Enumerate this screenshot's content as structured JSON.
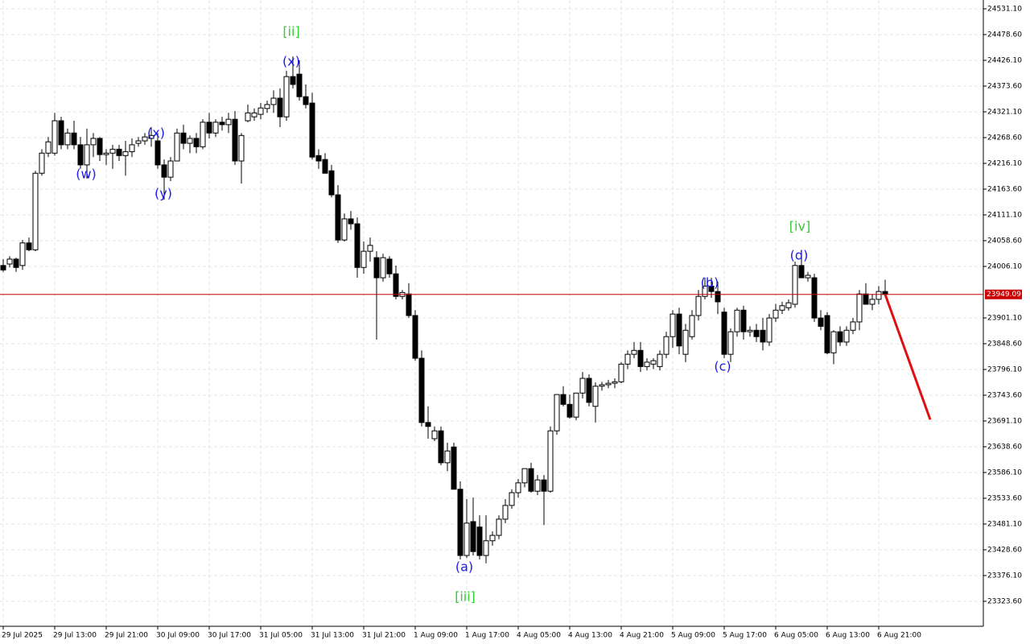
{
  "chart_data": {
    "type": "candlestick",
    "ylim": [
      23272.7,
      24549.1
    ],
    "yticks": [
      {
        "value": 24531.1,
        "label": "24531.10"
      },
      {
        "value": 24478.6,
        "label": "24478.60"
      },
      {
        "value": 24426.1,
        "label": "24426.10"
      },
      {
        "value": 24373.6,
        "label": "24373.60"
      },
      {
        "value": 24321.1,
        "label": "24321.10"
      },
      {
        "value": 24268.6,
        "label": "24268.60"
      },
      {
        "value": 24216.1,
        "label": "24216.10"
      },
      {
        "value": 24163.6,
        "label": "24163.60"
      },
      {
        "value": 24111.1,
        "label": "24111.10"
      },
      {
        "value": 24058.6,
        "label": "24058.60"
      },
      {
        "value": 24006.1,
        "label": "24006.10"
      },
      {
        "value": 23901.1,
        "label": "23901.10"
      },
      {
        "value": 23848.6,
        "label": "23848.60"
      },
      {
        "value": 23796.1,
        "label": "23796.10"
      },
      {
        "value": 23743.6,
        "label": "23743.60"
      },
      {
        "value": 23691.1,
        "label": "23691.10"
      },
      {
        "value": 23638.6,
        "label": "23638.60"
      },
      {
        "value": 23586.1,
        "label": "23586.10"
      },
      {
        "value": 23533.6,
        "label": "23533.60"
      },
      {
        "value": 23481.1,
        "label": "23481.10"
      },
      {
        "value": 23428.6,
        "label": "23428.60"
      },
      {
        "value": 23376.1,
        "label": "23376.10"
      },
      {
        "value": 23323.6,
        "label": "23323.60"
      }
    ],
    "grid": true,
    "up_color": "#ffffff",
    "down_color": "#000000",
    "categories": [
      "29 Jul 2025",
      null,
      null,
      null,
      null,
      null,
      null,
      null,
      "29 Jul 13:00",
      null,
      null,
      null,
      null,
      null,
      null,
      null,
      "29 Jul 21:00",
      null,
      null,
      null,
      null,
      null,
      null,
      null,
      "30 Jul 09:00",
      null,
      null,
      null,
      null,
      null,
      null,
      null,
      "30 Jul 17:00",
      null,
      null,
      null,
      null,
      null,
      null,
      null,
      "31 Jul 05:00",
      null,
      null,
      null,
      null,
      null,
      null,
      null,
      "31 Jul 13:00",
      null,
      null,
      null,
      null,
      null,
      null,
      null,
      "31 Jul 21:00",
      null,
      null,
      null,
      null,
      null,
      null,
      null,
      "1 Aug 09:00",
      null,
      null,
      null,
      null,
      null,
      null,
      null,
      "1 Aug 17:00",
      null,
      null,
      null,
      null,
      null,
      null,
      null,
      "4 Aug 05:00",
      null,
      null,
      null,
      null,
      null,
      null,
      null,
      "4 Aug 13:00",
      null,
      null,
      null,
      null,
      null,
      null,
      null,
      "4 Aug 21:00",
      null,
      null,
      null,
      null,
      null,
      null,
      null,
      "5 Aug 09:00",
      null,
      null,
      null,
      null,
      null,
      null,
      null,
      "5 Aug 17:00",
      null,
      null,
      null,
      null,
      null,
      null,
      null,
      "6 Aug 05:00",
      null,
      null,
      null,
      null,
      null,
      null,
      null,
      "6 Aug 13:00",
      null,
      null,
      null,
      null,
      null,
      null,
      null,
      "6 Aug 21:00",
      null
    ],
    "ohlc": [
      [
        24008,
        24021,
        23995,
        23999
      ],
      [
        24011,
        24027,
        24004,
        24021
      ],
      [
        24021,
        24024,
        23995,
        24004
      ],
      [
        24008,
        24060,
        23999,
        24054
      ],
      [
        24054,
        24065,
        24037,
        24040
      ],
      [
        24040,
        24201,
        24037,
        24196
      ],
      [
        24196,
        24245,
        24191,
        24237
      ],
      [
        24237,
        24270,
        24229,
        24260
      ],
      [
        24237,
        24319,
        24232,
        24303
      ],
      [
        24303,
        24311,
        24245,
        24254
      ],
      [
        24254,
        24287,
        24245,
        24278
      ],
      [
        24278,
        24303,
        24245,
        24254
      ],
      [
        24254,
        24270,
        24205,
        24213
      ],
      [
        24213,
        24287,
        24185,
        24254
      ],
      [
        24254,
        24278,
        24229,
        24267
      ],
      [
        24267,
        24270,
        24221,
        24234
      ],
      [
        24234,
        24245,
        24213,
        24237
      ],
      [
        24237,
        24254,
        24205,
        24245
      ],
      [
        24245,
        24254,
        24221,
        24232
      ],
      [
        24232,
        24262,
        24191,
        24240
      ],
      [
        24240,
        24267,
        24229,
        24254
      ],
      [
        24257,
        24270,
        24250,
        24262
      ],
      [
        24262,
        24278,
        24254,
        24270
      ],
      [
        24267,
        24290,
        24250,
        24273
      ],
      [
        24262,
        24278,
        24205,
        24213
      ],
      [
        24213,
        24224,
        24142,
        24188
      ],
      [
        24188,
        24229,
        24180,
        24221
      ],
      [
        24221,
        24287,
        24221,
        24278
      ],
      [
        24278,
        24295,
        24245,
        24257
      ],
      [
        24257,
        24273,
        24237,
        24267
      ],
      [
        24267,
        24278,
        24237,
        24250
      ],
      [
        24250,
        24306,
        24245,
        24300
      ],
      [
        24300,
        24319,
        24267,
        24278
      ],
      [
        24278,
        24306,
        24270,
        24300
      ],
      [
        24300,
        24311,
        24283,
        24295
      ],
      [
        24295,
        24319,
        24278,
        24306
      ],
      [
        24306,
        24323,
        24213,
        24221
      ],
      [
        24221,
        24278,
        24175,
        24273
      ],
      [
        24303,
        24336,
        24300,
        24319
      ],
      [
        24311,
        24328,
        24303,
        24319
      ],
      [
        24316,
        24339,
        24306,
        24329
      ],
      [
        24328,
        24344,
        24319,
        24336
      ],
      [
        24336,
        24365,
        24319,
        24349
      ],
      [
        24349,
        24369,
        24290,
        24311
      ],
      [
        24311,
        24405,
        24303,
        24393
      ],
      [
        24393,
        24434,
        24369,
        24377
      ],
      [
        24398,
        24426,
        24344,
        24352
      ],
      [
        24352,
        24377,
        24328,
        24336
      ],
      [
        24339,
        24360,
        24224,
        24229
      ],
      [
        24232,
        24245,
        24205,
        24221
      ],
      [
        24224,
        24237,
        24196,
        24196
      ],
      [
        24201,
        24213,
        24147,
        24152
      ],
      [
        24152,
        24172,
        24054,
        24060
      ],
      [
        24060,
        24114,
        24057,
        24103
      ],
      [
        24103,
        24119,
        24081,
        24093
      ],
      [
        24093,
        24106,
        23983,
        24004
      ],
      [
        24004,
        24057,
        23991,
        24037
      ],
      [
        24037,
        24065,
        24016,
        24049
      ],
      [
        24024,
        24037,
        23857,
        23983
      ],
      [
        23983,
        24032,
        23975,
        24024
      ],
      [
        24021,
        24027,
        23983,
        23991
      ],
      [
        23991,
        24008,
        23939,
        23945
      ],
      [
        23945,
        23958,
        23939,
        23953
      ],
      [
        23950,
        23972,
        23901,
        23906
      ],
      [
        23906,
        23917,
        23814,
        23819
      ],
      [
        23819,
        23835,
        23680,
        23688
      ],
      [
        23688,
        23721,
        23655,
        23680
      ],
      [
        23655,
        23680,
        23650,
        23671
      ],
      [
        23671,
        23680,
        23601,
        23606
      ],
      [
        23606,
        23647,
        23589,
        23630
      ],
      [
        23638,
        23647,
        23552,
        23552
      ],
      [
        23552,
        23568,
        23409,
        23417
      ],
      [
        23417,
        23532,
        23412,
        23483
      ],
      [
        23486,
        23535,
        23417,
        23425
      ],
      [
        23475,
        23499,
        23409,
        23417
      ],
      [
        23417,
        23499,
        23401,
        23447
      ],
      [
        23447,
        23466,
        23437,
        23458
      ],
      [
        23458,
        23499,
        23450,
        23491
      ],
      [
        23491,
        23532,
        23483,
        23519
      ],
      [
        23519,
        23552,
        23512,
        23545
      ],
      [
        23545,
        23573,
        23535,
        23565
      ],
      [
        23565,
        23594,
        23556,
        23594
      ],
      [
        23594,
        23606,
        23545,
        23548
      ],
      [
        23548,
        23581,
        23540,
        23571
      ],
      [
        23571,
        23581,
        23479,
        23548
      ],
      [
        23548,
        23680,
        23545,
        23671
      ],
      [
        23671,
        23745,
        23663,
        23745
      ],
      [
        23745,
        23762,
        23721,
        23725
      ],
      [
        23725,
        23745,
        23696,
        23699
      ],
      [
        23699,
        23748,
        23693,
        23748
      ],
      [
        23748,
        23791,
        23737,
        23778
      ],
      [
        23778,
        23786,
        23721,
        23729
      ],
      [
        23721,
        23770,
        23688,
        23762
      ],
      [
        23762,
        23771,
        23753,
        23765
      ],
      [
        23765,
        23775,
        23758,
        23768
      ],
      [
        23768,
        23778,
        23758,
        23771
      ],
      [
        23771,
        23811,
        23768,
        23807
      ],
      [
        23807,
        23835,
        23797,
        23827
      ],
      [
        23827,
        23852,
        23819,
        23835
      ],
      [
        23835,
        23852,
        23791,
        23802
      ],
      [
        23802,
        23819,
        23794,
        23811
      ],
      [
        23807,
        23819,
        23797,
        23814
      ],
      [
        23802,
        23835,
        23794,
        23827
      ],
      [
        23827,
        23873,
        23819,
        23863
      ],
      [
        23863,
        23917,
        23840,
        23909
      ],
      [
        23909,
        23922,
        23827,
        23844
      ],
      [
        23827,
        23889,
        23811,
        23876
      ],
      [
        23863,
        23917,
        23857,
        23906
      ],
      [
        23906,
        23958,
        23896,
        23945
      ],
      [
        23945,
        23983,
        23939,
        23966
      ],
      [
        23966,
        23983,
        23942,
        23955
      ],
      [
        23955,
        23975,
        23909,
        23934
      ],
      [
        23913,
        23922,
        23819,
        23827
      ],
      [
        23827,
        23880,
        23811,
        23873
      ],
      [
        23873,
        23922,
        23863,
        23917
      ],
      [
        23917,
        23926,
        23857,
        23873
      ],
      [
        23873,
        23884,
        23863,
        23876
      ],
      [
        23876,
        23889,
        23852,
        23863
      ],
      [
        23876,
        23901,
        23835,
        23852
      ],
      [
        23852,
        23909,
        23844,
        23901
      ],
      [
        23901,
        23930,
        23893,
        23917
      ],
      [
        23917,
        23934,
        23909,
        23926
      ],
      [
        23922,
        23939,
        23916,
        23932
      ],
      [
        23929,
        24016,
        23922,
        24008
      ],
      [
        24008,
        24024,
        23983,
        23983
      ],
      [
        23983,
        23995,
        23975,
        23988
      ],
      [
        23983,
        23991,
        23893,
        23901
      ],
      [
        23901,
        23917,
        23876,
        23884
      ],
      [
        23906,
        23913,
        23827,
        23830
      ],
      [
        23830,
        23876,
        23807,
        23873
      ],
      [
        23873,
        23884,
        23844,
        23852
      ],
      [
        23852,
        23884,
        23844,
        23876
      ],
      [
        23876,
        23901,
        23868,
        23893
      ],
      [
        23893,
        23958,
        23876,
        23950
      ],
      [
        23950,
        23972,
        23929,
        23929
      ],
      [
        23929,
        23950,
        23917,
        23939
      ],
      [
        23939,
        23966,
        23929,
        23955
      ],
      [
        23955,
        23979,
        23945,
        23949.09
      ]
    ],
    "current_price": {
      "value": 23949.09,
      "color": "#cc0000"
    },
    "forecast": {
      "x": [
        137,
        144
      ],
      "values": [
        23949.09,
        23694
      ],
      "color": "#e01010"
    },
    "annotations": [
      {
        "text": "[ii]",
        "color": "#33cc33"
      },
      {
        "text": "(x)",
        "color": "#1a1aee"
      },
      {
        "text": "(w)",
        "color": "#1a1aee"
      },
      {
        "text": "(x)",
        "color": "#1a1aee"
      },
      {
        "text": "(y)",
        "color": "#1a1aee"
      },
      {
        "text": "(a)",
        "color": "#1a1aee"
      },
      {
        "text": "[iii]",
        "color": "#33cc33"
      },
      {
        "text": "(b)",
        "color": "#1a1aee"
      },
      {
        "text": "(c)",
        "color": "#1a1aee"
      },
      {
        "text": "[iv]",
        "color": "#33cc33"
      },
      {
        "text": "(d)",
        "color": "#1a1aee"
      }
    ]
  }
}
